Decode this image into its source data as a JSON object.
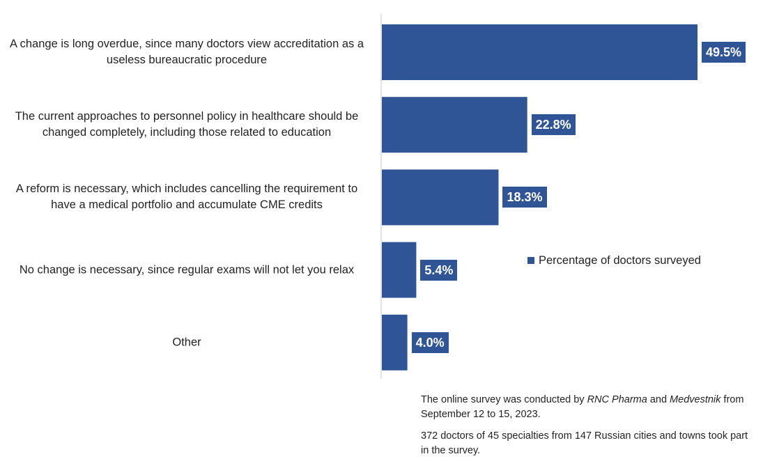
{
  "colors": {
    "bar": "#2f5597",
    "axis": "#c8c8c8"
  },
  "chart_data": {
    "type": "bar",
    "orientation": "horizontal",
    "categories": [
      "A change is long overdue, since many doctors view accreditation as a useless bureaucratic procedure",
      "The current approaches to personnel policy in healthcare should be changed completely, including those related to education",
      "A reform is necessary, which includes cancelling the requirement to have a medical portfolio and accumulate CME credits",
      "No change is necessary, since regular exams will not let you relax",
      "Other"
    ],
    "series": [
      {
        "name": "Percentage of doctors surveyed",
        "values": [
          49.5,
          22.8,
          18.3,
          5.4,
          4.0
        ]
      }
    ],
    "data_labels": [
      "49.5%",
      "22.8%",
      "18.3%",
      "5.4%",
      "4.0%"
    ],
    "xlim": [
      0,
      54
    ],
    "grid": false,
    "legend_position": "right"
  },
  "notes": {
    "line1_pre": "The online survey was conducted by ",
    "line1_org1": "RNC Pharma",
    "line1_mid": " and ",
    "line1_org2": "Medvestnik",
    "line1_post": " from September 12 to 15, 2023.",
    "line2": "372 doctors of 45 specialties from 147 Russian cities and towns took part in the survey."
  }
}
